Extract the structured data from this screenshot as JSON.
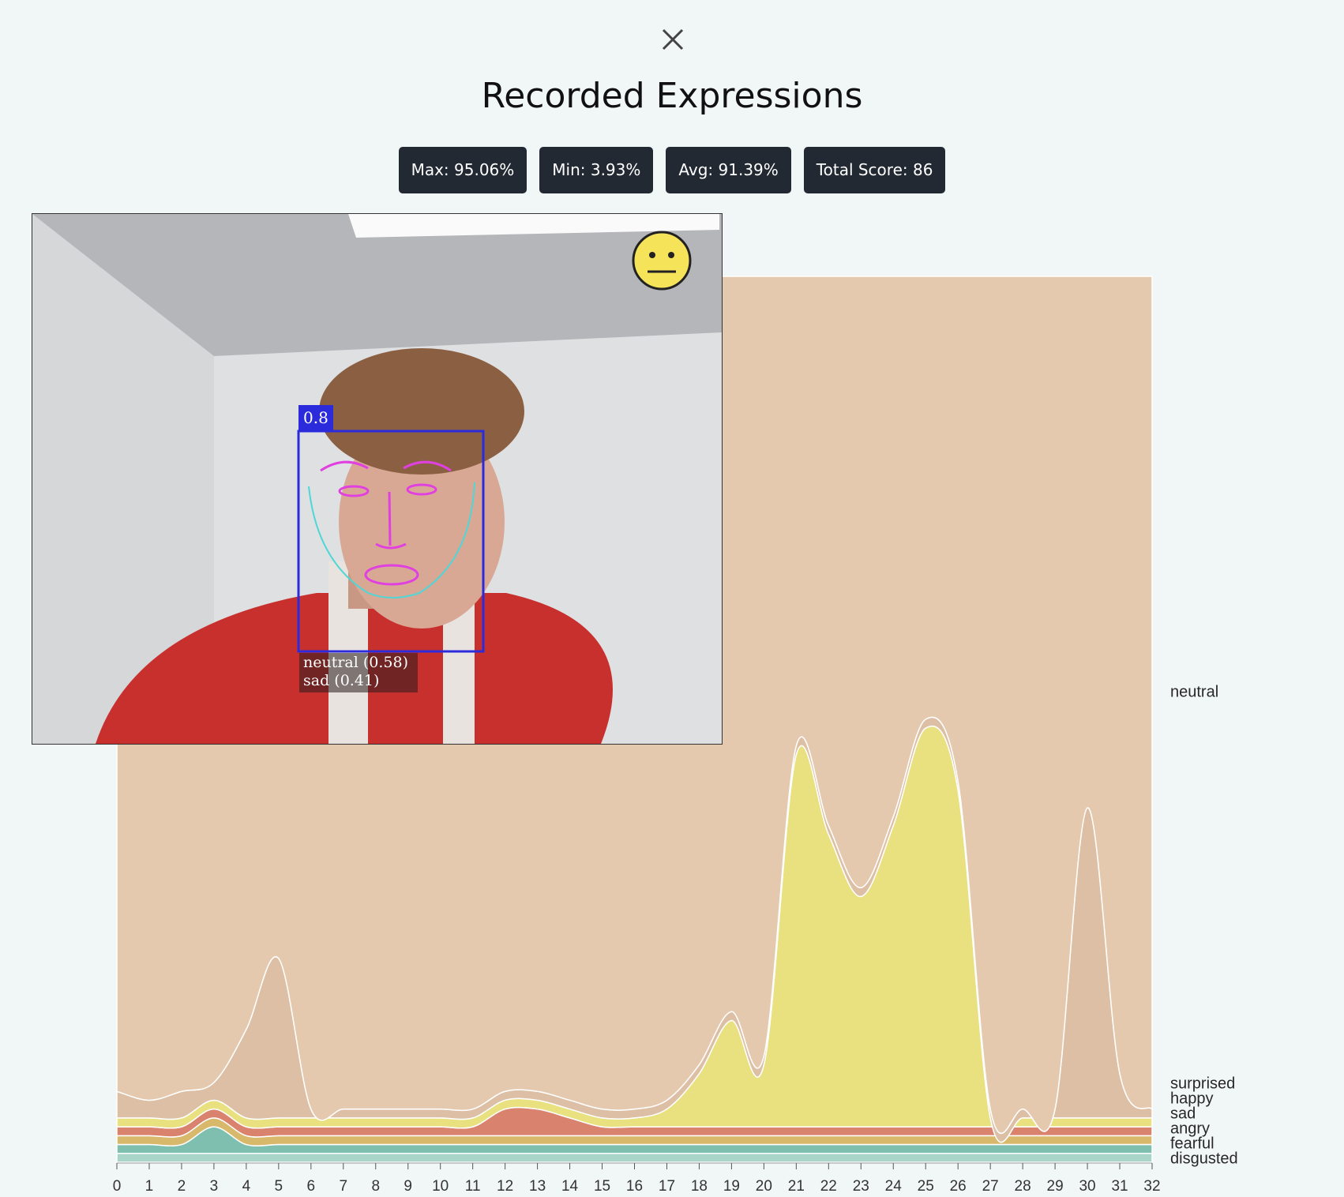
{
  "title": "Recorded Expressions",
  "stats": [
    "Max: 95.06%",
    "Min: 3.93%",
    "Avg: 91.39%",
    "Total Score: 86"
  ],
  "camera": {
    "box_score": "0.8",
    "expressions": [
      "neutral (0.58)",
      "sad (0.41)"
    ]
  },
  "chart_data": {
    "type": "area",
    "stacked": true,
    "grid": true,
    "x": [
      0,
      1,
      2,
      3,
      4,
      5,
      6,
      7,
      8,
      9,
      10,
      11,
      12,
      13,
      14,
      15,
      16,
      17,
      18,
      19,
      20,
      21,
      22,
      23,
      24,
      25,
      26,
      27,
      28,
      29,
      30,
      31,
      32
    ],
    "xlim": [
      0,
      32
    ],
    "ylim": [
      0,
      1
    ],
    "xticks": [
      0,
      1,
      2,
      3,
      4,
      5,
      6,
      7,
      8,
      9,
      10,
      11,
      12,
      13,
      14,
      15,
      16,
      17,
      18,
      19,
      20,
      21,
      22,
      23,
      24,
      25,
      26,
      27,
      28,
      29,
      30,
      31,
      32
    ],
    "series": [
      {
        "name": "neutral",
        "color": "#e5c9ae",
        "values": [
          0.91,
          0.92,
          0.91,
          0.89,
          0.85,
          0.77,
          0.94,
          0.94,
          0.94,
          0.94,
          0.94,
          0.94,
          0.92,
          0.92,
          0.93,
          0.94,
          0.94,
          0.93,
          0.89,
          0.83,
          0.88,
          0.53,
          0.62,
          0.69,
          0.61,
          0.5,
          0.57,
          0.94,
          0.94,
          0.94,
          0.6,
          0.9,
          0.94
        ]
      },
      {
        "name": "surprised",
        "color": "#dcbfa4",
        "values": [
          0.03,
          0.02,
          0.03,
          0.02,
          0.1,
          0.18,
          0.01,
          0.01,
          0.01,
          0.01,
          0.01,
          0.01,
          0.01,
          0.01,
          0.01,
          0.01,
          0.01,
          0.01,
          0.01,
          0.01,
          0.01,
          0.01,
          0.01,
          0.01,
          0.01,
          0.01,
          0.01,
          0.01,
          0.01,
          0.01,
          0.35,
          0.05,
          0.01
        ]
      },
      {
        "name": "happy",
        "color": "#e9e07f",
        "values": [
          0.01,
          0.01,
          0.01,
          0.01,
          0.01,
          0.01,
          0.01,
          0.01,
          0.01,
          0.01,
          0.01,
          0.01,
          0.01,
          0.01,
          0.01,
          0.01,
          0.01,
          0.02,
          0.06,
          0.12,
          0.07,
          0.42,
          0.33,
          0.26,
          0.34,
          0.45,
          0.38,
          0.01,
          0.01,
          0.01,
          0.01,
          0.01,
          0.01
        ]
      },
      {
        "name": "sad",
        "color": "#d9826e",
        "values": [
          0.01,
          0.01,
          0.01,
          0.01,
          0.01,
          0.01,
          0.01,
          0.01,
          0.01,
          0.01,
          0.01,
          0.01,
          0.03,
          0.03,
          0.02,
          0.01,
          0.01,
          0.01,
          0.01,
          0.01,
          0.01,
          0.01,
          0.01,
          0.01,
          0.01,
          0.01,
          0.01,
          0.01,
          0.01,
          0.01,
          0.01,
          0.01,
          0.01
        ]
      },
      {
        "name": "angry",
        "color": "#d8b86a",
        "values": [
          0.01,
          0.01,
          0.01,
          0.01,
          0.01,
          0.01,
          0.01,
          0.01,
          0.01,
          0.01,
          0.01,
          0.01,
          0.01,
          0.01,
          0.01,
          0.01,
          0.01,
          0.01,
          0.01,
          0.01,
          0.01,
          0.01,
          0.01,
          0.01,
          0.01,
          0.01,
          0.01,
          0.01,
          0.01,
          0.01,
          0.01,
          0.01,
          0.01
        ]
      },
      {
        "name": "fearful",
        "color": "#7fbfb0",
        "values": [
          0.01,
          0.01,
          0.01,
          0.03,
          0.01,
          0.01,
          0.01,
          0.01,
          0.01,
          0.01,
          0.01,
          0.01,
          0.01,
          0.01,
          0.01,
          0.01,
          0.01,
          0.01,
          0.01,
          0.01,
          0.01,
          0.01,
          0.01,
          0.01,
          0.01,
          0.01,
          0.01,
          0.01,
          0.01,
          0.01,
          0.01,
          0.01,
          0.01
        ]
      },
      {
        "name": "disgusted",
        "color": "#a8d5c8",
        "values": [
          0.01,
          0.01,
          0.01,
          0.01,
          0.01,
          0.01,
          0.01,
          0.01,
          0.01,
          0.01,
          0.01,
          0.01,
          0.01,
          0.01,
          0.01,
          0.01,
          0.01,
          0.01,
          0.01,
          0.01,
          0.01,
          0.01,
          0.01,
          0.01,
          0.01,
          0.01,
          0.01,
          0.01,
          0.01,
          0.01,
          0.01,
          0.01,
          0.01
        ]
      }
    ]
  }
}
